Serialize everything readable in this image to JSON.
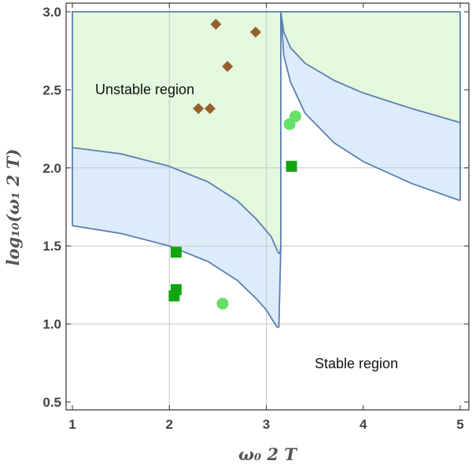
{
  "chart_data": {
    "type": "scatter",
    "title": "",
    "xlabel": "ω₀ 2 T",
    "ylabel": "log₁₀(ω₁ 2 T)",
    "xlim": [
      0.9,
      5.1
    ],
    "ylim": [
      0.45,
      3.0
    ],
    "x_ticks": [
      1,
      2,
      3,
      4,
      5
    ],
    "x_tick_labels": [
      "1",
      "2",
      "3",
      "4",
      "5"
    ],
    "y_ticks": [
      0.5,
      1.0,
      1.5,
      2.0,
      2.5,
      3.0
    ],
    "y_tick_labels": [
      "0.5",
      "1.0",
      "1.5",
      "2.0",
      "2.5",
      "3.0"
    ],
    "gridlines_x": [
      2,
      3
    ],
    "gridlines_y": [
      1.0,
      1.5,
      2.0
    ],
    "annotations": {
      "unstable": "Unstable region",
      "stable": "Stable region"
    },
    "regions": {
      "left_upper_boundary": [
        [
          1.0,
          2.13
        ],
        [
          1.5,
          2.09
        ],
        [
          2.0,
          2.01
        ],
        [
          2.4,
          1.91
        ],
        [
          2.7,
          1.79
        ],
        [
          2.9,
          1.67
        ],
        [
          3.05,
          1.56
        ],
        [
          3.12,
          1.46
        ],
        [
          3.14,
          1.45
        ],
        [
          3.15,
          1.5
        ]
      ],
      "left_lower_boundary": [
        [
          1.0,
          1.63
        ],
        [
          1.5,
          1.58
        ],
        [
          2.0,
          1.5
        ],
        [
          2.4,
          1.4
        ],
        [
          2.7,
          1.28
        ],
        [
          2.9,
          1.16
        ],
        [
          3.0,
          1.09
        ],
        [
          3.07,
          1.02
        ],
        [
          3.11,
          0.98
        ],
        [
          3.13,
          0.98
        ],
        [
          3.15,
          1.5
        ]
      ],
      "right_upper_boundary": [
        [
          3.15,
          3.0
        ],
        [
          3.18,
          2.87
        ],
        [
          3.25,
          2.77
        ],
        [
          3.4,
          2.67
        ],
        [
          3.7,
          2.56
        ],
        [
          4.0,
          2.48
        ],
        [
          4.5,
          2.38
        ],
        [
          5.0,
          2.29
        ]
      ],
      "right_lower_boundary": [
        [
          3.15,
          3.0
        ],
        [
          3.18,
          2.72
        ],
        [
          3.25,
          2.55
        ],
        [
          3.4,
          2.35
        ],
        [
          3.7,
          2.16
        ],
        [
          4.0,
          2.04
        ],
        [
          4.5,
          1.9
        ],
        [
          5.0,
          1.79
        ]
      ],
      "unstable_fill": "#e4f8dd",
      "band_fill": "#dcecfb",
      "boundary_color": "#5b7fb0"
    },
    "series": [
      {
        "name": "diamonds",
        "marker": "diamond",
        "color": "#96602e",
        "points": [
          [
            2.48,
            2.92
          ],
          [
            2.89,
            2.87
          ],
          [
            2.6,
            2.65
          ],
          [
            2.3,
            2.38
          ],
          [
            2.42,
            2.38
          ]
        ]
      },
      {
        "name": "circles",
        "marker": "circle",
        "color": "#66e066",
        "points": [
          [
            3.3,
            2.33
          ],
          [
            3.24,
            2.28
          ],
          [
            2.55,
            1.13
          ]
        ]
      },
      {
        "name": "squares",
        "marker": "square",
        "color": "#11a511",
        "points": [
          [
            3.26,
            2.01
          ],
          [
            2.07,
            1.46
          ],
          [
            2.07,
            1.22
          ],
          [
            2.05,
            1.18
          ]
        ]
      }
    ]
  }
}
